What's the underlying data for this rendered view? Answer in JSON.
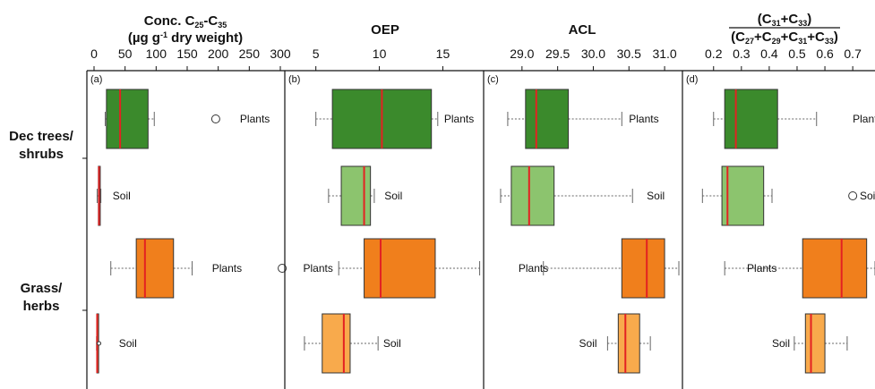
{
  "chart_data": {
    "type": "box",
    "groups": [
      {
        "label_line1": "Dec trees/",
        "label_line2": "shrubs"
      },
      {
        "label_line1": "Grass/",
        "label_line2": "herbs"
      }
    ],
    "colors": {
      "dec_plants": "#3b8a2c",
      "dec_soil": "#8cc46e",
      "grass_plants": "#f07f1c",
      "grass_soil": "#f8aa4c",
      "median": "#e32222",
      "axis": "#111111",
      "whisker": "#666666"
    },
    "panels": [
      {
        "letter": "(a)",
        "title_html": "Conc. C<tspan baseline-shift='-30%' font-size='9'>25</tspan>-C<tspan baseline-shift='-30%' font-size='9'>35</tspan>",
        "title_line2_html": "(µg g<tspan baseline-shift='super' font-size='9'>-1</tspan>  dry weight)",
        "xlim": [
          0,
          300
        ],
        "ticks": [
          0,
          50,
          100,
          150,
          200,
          250,
          300
        ],
        "boxes": [
          {
            "label": "Plants",
            "min": 18,
            "q1": 20,
            "median": 42,
            "q3": 87,
            "max": 97,
            "outliers": [
              196
            ],
            "label_at": 235
          },
          {
            "label": "Soil",
            "min": 5,
            "q1": 7,
            "median": 8,
            "q3": 10,
            "max": 11,
            "outliers": [],
            "label_at": 30
          },
          {
            "label": "Plants",
            "min": 27,
            "q1": 68,
            "median": 82,
            "q3": 128,
            "max": 158,
            "outliers": [
              303
            ],
            "label_at": 190
          },
          {
            "label": "Soil",
            "min": 4,
            "q1": 4.5,
            "median": 5,
            "q3": 6,
            "max": 6.5,
            "outliers": [
              8
            ],
            "label_at": 40
          }
        ]
      },
      {
        "letter": "(b)",
        "title_html": "OEP",
        "xlim": [
          3.4,
          18.0
        ],
        "ticks": [
          5,
          10,
          15
        ],
        "boxes": [
          {
            "label": "Plants",
            "min": 5.0,
            "q1": 6.3,
            "median": 10.2,
            "q3": 14.1,
            "max": 14.6,
            "outliers": [],
            "label_at": 15.1
          },
          {
            "label": "Soil",
            "min": 6.0,
            "q1": 7.0,
            "median": 8.8,
            "q3": 9.3,
            "max": 9.6,
            "outliers": [],
            "label_at": 10.4
          },
          {
            "label": "Plants",
            "min": 6.8,
            "q1": 8.8,
            "median": 10.1,
            "q3": 14.4,
            "max": 17.9,
            "outliers": [],
            "label_at": 4.0
          },
          {
            "label": "Soil",
            "min": 4.1,
            "q1": 5.5,
            "median": 7.2,
            "q3": 7.7,
            "max": 9.9,
            "outliers": [],
            "label_at": 10.3
          }
        ]
      },
      {
        "letter": "(c)",
        "title_html": "ACL",
        "xlim": [
          28.6,
          31.2
        ],
        "ticks": [
          29.0,
          29.5,
          30.0,
          30.5,
          31.0
        ],
        "tick_labels": [
          "29.0",
          "29.5",
          "30.0",
          "30.5",
          "31.0"
        ],
        "boxes": [
          {
            "label": "Plants",
            "min": 28.8,
            "q1": 29.05,
            "median": 29.2,
            "q3": 29.65,
            "max": 30.4,
            "outliers": [],
            "label_at": 30.5
          },
          {
            "label": "Soil",
            "min": 28.7,
            "q1": 28.85,
            "median": 29.1,
            "q3": 29.45,
            "max": 30.55,
            "outliers": [],
            "label_at": 30.75
          },
          {
            "label": "Plants",
            "min": 29.3,
            "q1": 30.4,
            "median": 30.75,
            "q3": 31.0,
            "max": 31.2,
            "outliers": [],
            "label_at": 28.95
          },
          {
            "label": "Soil",
            "min": 30.2,
            "q1": 30.35,
            "median": 30.45,
            "q3": 30.65,
            "max": 30.8,
            "outliers": [],
            "label_at": 29.8
          }
        ]
      },
      {
        "letter": "(d)",
        "title_html": "(C<tspan baseline-shift='-30%' font-size='9'>31</tspan>+C<tspan baseline-shift='-30%' font-size='9'>33</tspan>)",
        "title_line2_html": "(C<tspan baseline-shift='-30%' font-size='9'>27</tspan>+C<tspan baseline-shift='-30%' font-size='9'>29</tspan>+C<tspan baseline-shift='-30%' font-size='9'>31</tspan>+C<tspan baseline-shift='-30%' font-size='9'>33</tspan>)",
        "fraction": true,
        "xlim": [
          0.13,
          0.78
        ],
        "ticks": [
          0.2,
          0.3,
          0.4,
          0.5,
          0.6,
          0.7
        ],
        "tick_labels": [
          "0.2",
          "0.3",
          "0.4",
          "0.5",
          "0.6",
          "0.7"
        ],
        "boxes": [
          {
            "label": "Plants",
            "min": 0.2,
            "q1": 0.24,
            "median": 0.28,
            "q3": 0.43,
            "max": 0.57,
            "outliers": [],
            "label_at": 0.7
          },
          {
            "label": "Soil",
            "min": 0.16,
            "q1": 0.23,
            "median": 0.25,
            "q3": 0.38,
            "max": 0.41,
            "outliers": [
              0.7
            ],
            "label_at": 0.74
          },
          {
            "label": "Plants",
            "min": 0.24,
            "q1": 0.52,
            "median": 0.66,
            "q3": 0.75,
            "max": 0.78,
            "outliers": [],
            "label_at": 0.32
          },
          {
            "label": "Soil",
            "min": 0.49,
            "q1": 0.53,
            "median": 0.55,
            "q3": 0.6,
            "max": 0.68,
            "outliers": [],
            "label_at": 0.41
          }
        ]
      }
    ]
  }
}
